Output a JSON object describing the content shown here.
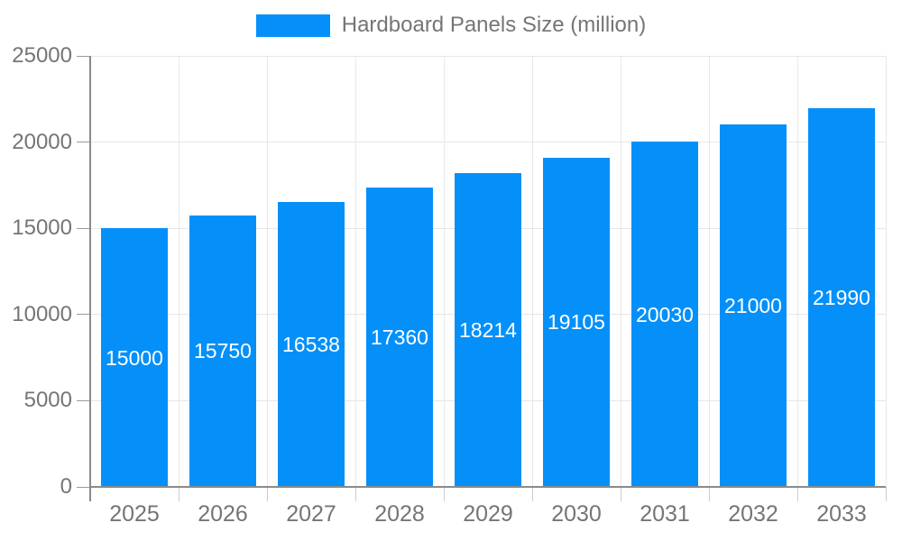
{
  "legend": {
    "label": "Hardboard Panels Size (million)"
  },
  "chart_data": {
    "type": "bar",
    "title": "Hardboard Panels Size (million)",
    "legend_label": "Hardboard Panels Size (million)",
    "legend_position": "top-center",
    "categories": [
      "2025",
      "2026",
      "2027",
      "2028",
      "2029",
      "2030",
      "2031",
      "2032",
      "2033"
    ],
    "values": [
      15000,
      15750,
      16538,
      17360,
      18214,
      19105,
      20030,
      21000,
      21990
    ],
    "bar_labels": [
      "15000",
      "15750",
      "16538",
      "17360",
      "18214",
      "19105",
      "20030",
      "21000",
      "21990"
    ],
    "xlabel": "",
    "ylabel": "",
    "ylim": [
      0,
      25000
    ],
    "yticks": [
      0,
      5000,
      10000,
      15000,
      20000,
      25000
    ],
    "ytick_labels": [
      "0",
      "5000",
      "10000",
      "15000",
      "20000",
      "25000"
    ],
    "grid": true,
    "colors": {
      "bar": "#0590f9",
      "bar_label": "#ffffff",
      "axis": "#8a8a8a",
      "grid_h": "#e6e6e6",
      "grid_v": "#e8e8e8",
      "tick_label": "#757575",
      "background": "#ffffff"
    }
  }
}
